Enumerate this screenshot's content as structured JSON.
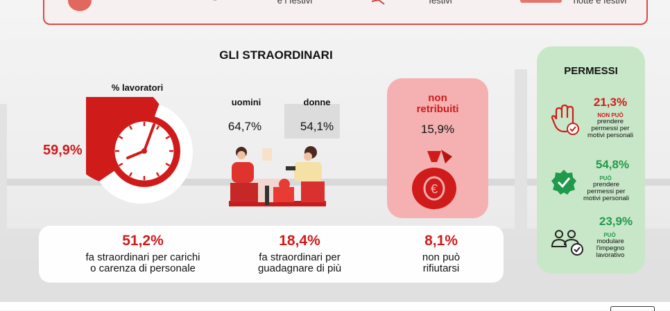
{
  "top_strip": {
    "item1": "e i festivi",
    "item2": "festivi",
    "item3": "notte e festivi"
  },
  "section": {
    "title": "GLI STRAORDINARI"
  },
  "gauge": {
    "label": "% lavoratori",
    "value": "59,9%",
    "fraction": 0.599
  },
  "gender": {
    "men_label": "uomini",
    "men_value": "64,7%",
    "women_label": "donne",
    "women_value": "54,1%"
  },
  "unpaid": {
    "title": "non\nretribuiti",
    "value": "15,9%"
  },
  "stats": [
    {
      "value": "51,2%",
      "desc": "fa straordinari per carichi\no carenza di personale"
    },
    {
      "value": "18,4%",
      "desc": "fa straordinari per\nguadagnare di più"
    },
    {
      "value": "8,1%",
      "desc": "non può\nrifiutarsi"
    }
  ],
  "permessi": {
    "title": "PERMESSI",
    "items": [
      {
        "pct": "21,3%",
        "tag": "NON PUÒ",
        "desc": "prendere\npermessi per\nmotivi personali",
        "color": "#d01b1b",
        "icon": "hand-stop-icon"
      },
      {
        "pct": "54,8%",
        "tag": "PUÒ",
        "desc": "prendere\npermessi per\nmotivi personali",
        "color": "#1f9a4a",
        "icon": "verified-badge-icon"
      },
      {
        "pct": "23,9%",
        "tag": "PUÒ",
        "desc": "modulare\nl'impegno\nlavorativo",
        "color": "#1f9a4a",
        "icon": "team-check-icon"
      }
    ]
  },
  "colors": {
    "accent_red": "#d01b1b",
    "accent_green": "#1f9a4a",
    "unpaid_bg": "#f5b1b1",
    "permessi_bg": "#c8e7c8"
  }
}
